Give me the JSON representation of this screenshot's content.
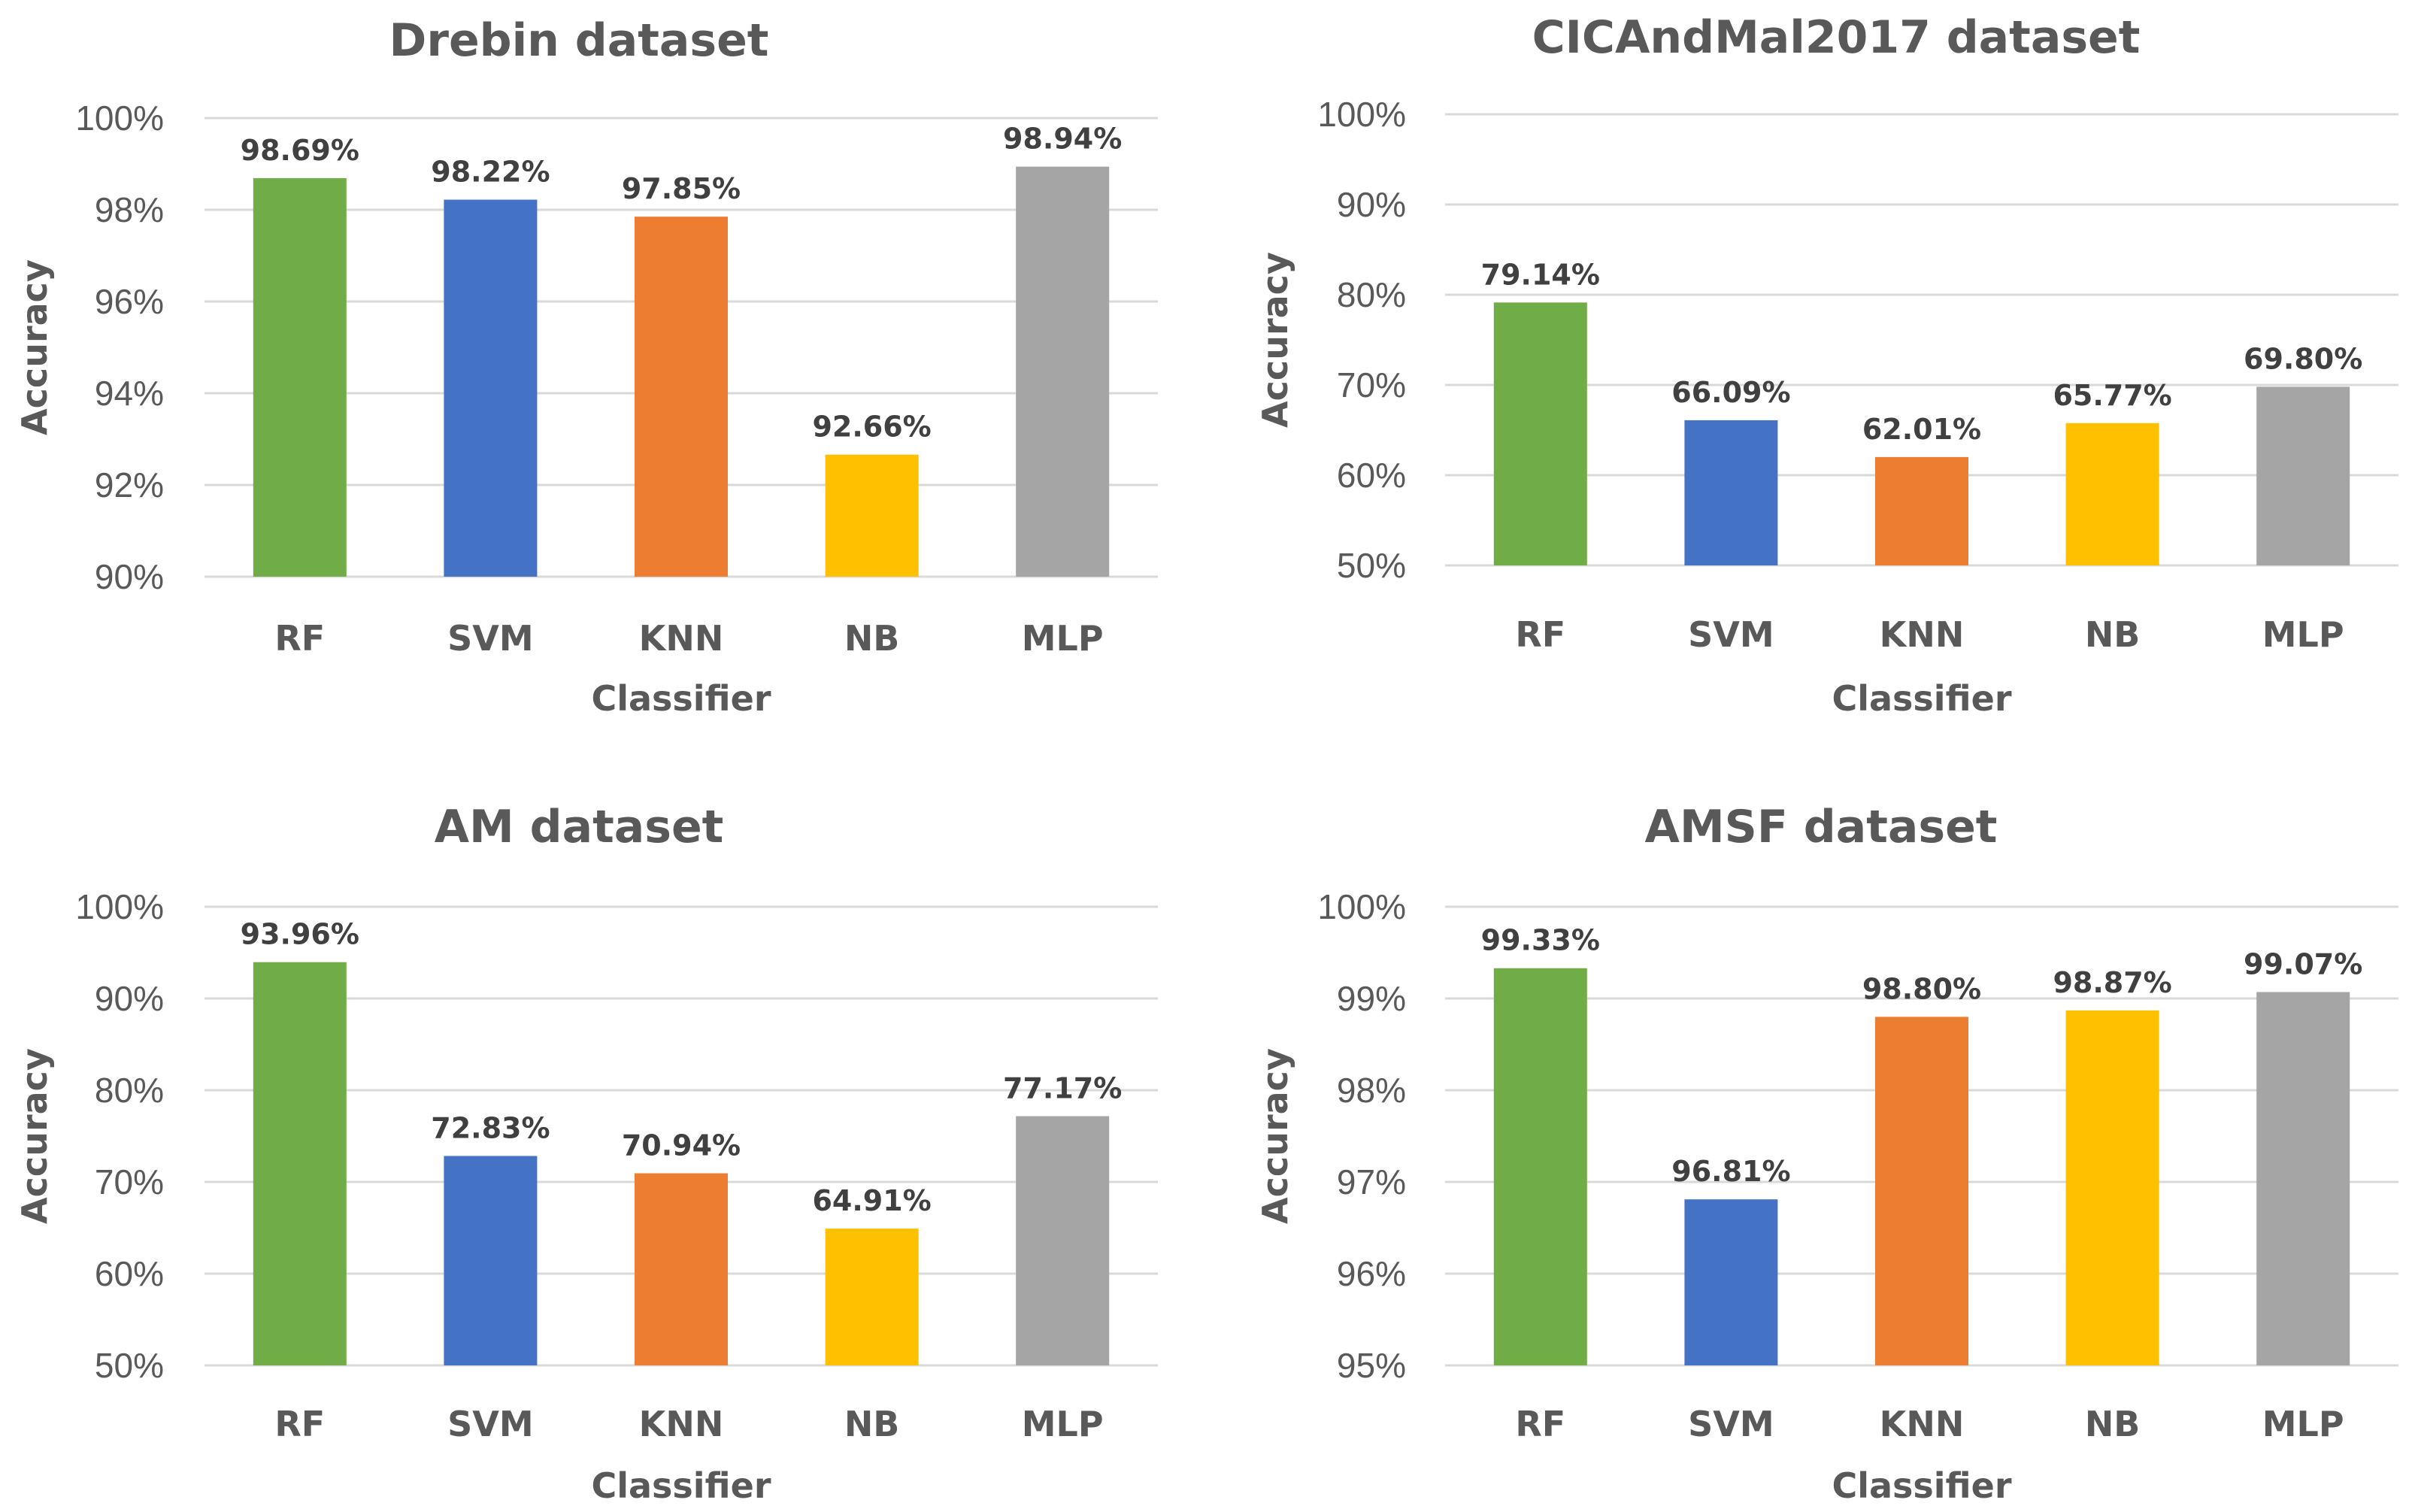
{
  "chart_data": [
    {
      "type": "bar",
      "title": "Drebin dataset",
      "xlabel": "Classifier",
      "ylabel": "Accuracy",
      "categories": [
        "RF",
        "SVM",
        "KNN",
        "NB",
        "MLP"
      ],
      "values": [
        98.69,
        98.22,
        97.85,
        92.66,
        98.94
      ],
      "value_labels": [
        "98.69%",
        "98.22%",
        "97.85%",
        "92.66%",
        "98.94%"
      ],
      "ylim": [
        90,
        100
      ],
      "yticks": [
        90,
        92,
        94,
        96,
        98,
        100
      ],
      "ytick_labels": [
        "90%",
        "92%",
        "94%",
        "96%",
        "98%",
        "100%"
      ],
      "colors": [
        "#70ad47",
        "#4472c4",
        "#ed7d31",
        "#ffc000",
        "#a5a5a5"
      ],
      "grid": true
    },
    {
      "type": "bar",
      "title": "CICAndMal2017 dataset",
      "xlabel": "Classifier",
      "ylabel": "Accuracy",
      "categories": [
        "RF",
        "SVM",
        "KNN",
        "NB",
        "MLP"
      ],
      "values": [
        79.14,
        66.09,
        62.01,
        65.77,
        69.8
      ],
      "value_labels": [
        "79.14%",
        "66.09%",
        "62.01%",
        "65.77%",
        "69.80%"
      ],
      "ylim": [
        50,
        100
      ],
      "yticks": [
        50,
        60,
        70,
        80,
        90,
        100
      ],
      "ytick_labels": [
        "50%",
        "60%",
        "70%",
        "80%",
        "90%",
        "100%"
      ],
      "colors": [
        "#70ad47",
        "#4472c4",
        "#ed7d31",
        "#ffc000",
        "#a5a5a5"
      ],
      "grid": true
    },
    {
      "type": "bar",
      "title": "AM dataset",
      "xlabel": "Classifier",
      "ylabel": "Accuracy",
      "categories": [
        "RF",
        "SVM",
        "KNN",
        "NB",
        "MLP"
      ],
      "values": [
        93.96,
        72.83,
        70.94,
        64.91,
        77.17
      ],
      "value_labels": [
        "93.96%",
        "72.83%",
        "70.94%",
        "64.91%",
        "77.17%"
      ],
      "ylim": [
        50,
        100
      ],
      "yticks": [
        50,
        60,
        70,
        80,
        90,
        100
      ],
      "ytick_labels": [
        "50%",
        "60%",
        "70%",
        "80%",
        "90%",
        "100%"
      ],
      "colors": [
        "#70ad47",
        "#4472c4",
        "#ed7d31",
        "#ffc000",
        "#a5a5a5"
      ],
      "grid": true
    },
    {
      "type": "bar",
      "title": "AMSF dataset",
      "xlabel": "Classifier",
      "ylabel": "Accuracy",
      "categories": [
        "RF",
        "SVM",
        "KNN",
        "NB",
        "MLP"
      ],
      "values": [
        99.33,
        96.81,
        98.8,
        98.87,
        99.07
      ],
      "value_labels": [
        "99.33%",
        "96.81%",
        "98.80%",
        "98.87%",
        "99.07%"
      ],
      "ylim": [
        95,
        100
      ],
      "yticks": [
        95,
        96,
        97,
        98,
        99,
        100
      ],
      "ytick_labels": [
        "95%",
        "96%",
        "97%",
        "98%",
        "99%",
        "100%"
      ],
      "colors": [
        "#70ad47",
        "#4472c4",
        "#ed7d31",
        "#ffc000",
        "#a5a5a5"
      ],
      "grid": true
    }
  ]
}
